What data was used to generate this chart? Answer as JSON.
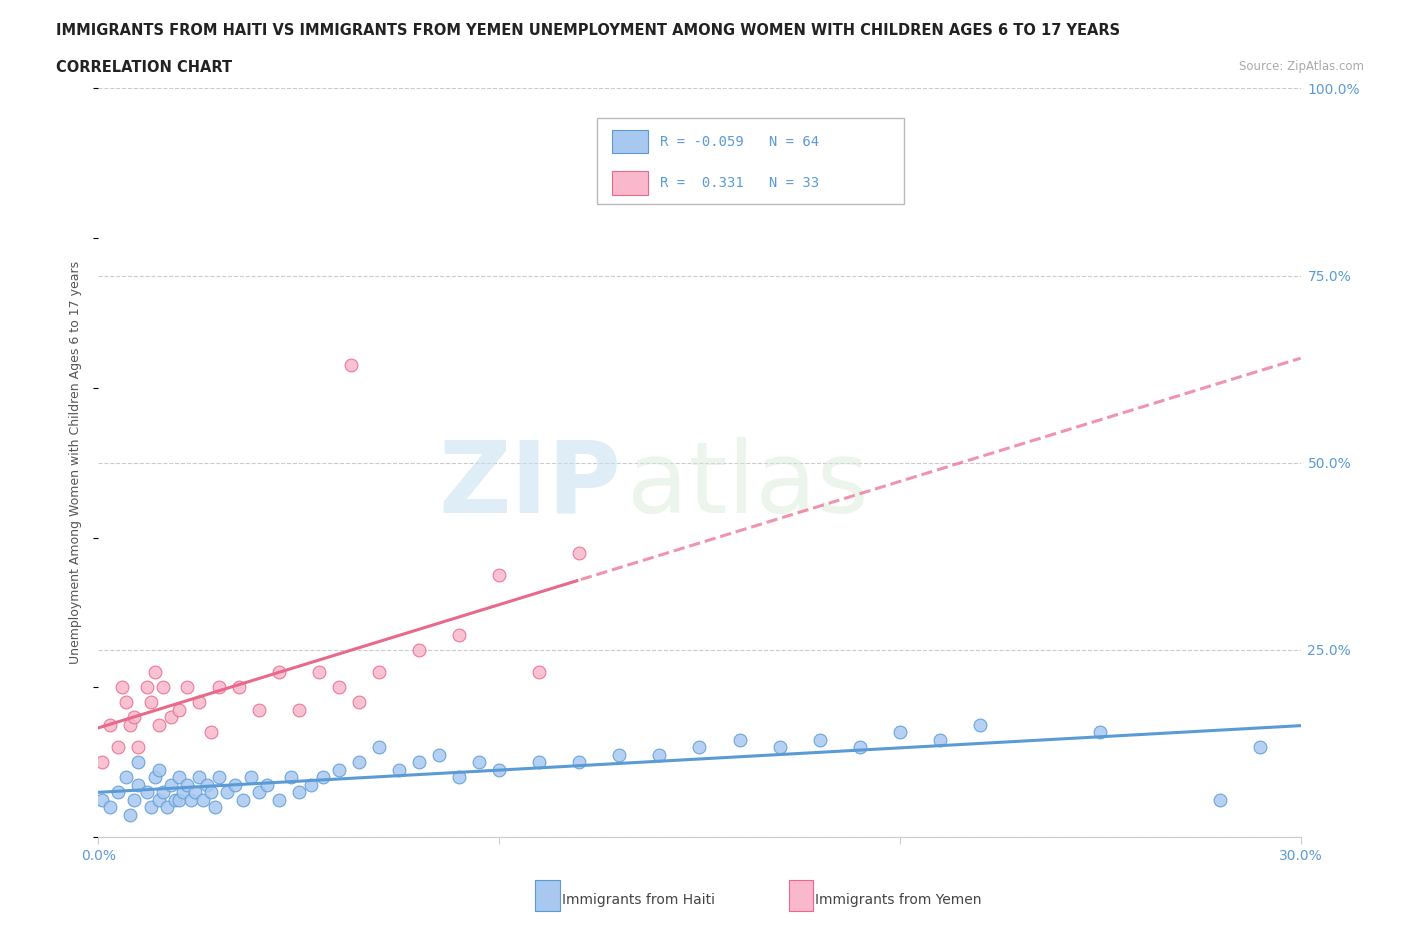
{
  "title_line1": "IMMIGRANTS FROM HAITI VS IMMIGRANTS FROM YEMEN UNEMPLOYMENT AMONG WOMEN WITH CHILDREN AGES 6 TO 17 YEARS",
  "title_line2": "CORRELATION CHART",
  "source_text": "Source: ZipAtlas.com",
  "ylabel": "Unemployment Among Women with Children Ages 6 to 17 years",
  "xlim": [
    0.0,
    0.3
  ],
  "ylim": [
    0.0,
    1.0
  ],
  "haiti_color": "#a8c8f0",
  "haiti_color_dark": "#5b9bd5",
  "yemen_color": "#f9b8cc",
  "yemen_color_dark": "#e8698a",
  "haiti_R": -0.059,
  "haiti_N": 64,
  "yemen_R": 0.331,
  "yemen_N": 33,
  "legend_label_haiti": "Immigrants from Haiti",
  "legend_label_yemen": "Immigrants from Yemen",
  "watermark_zip": "ZIP",
  "watermark_atlas": "atlas",
  "background_color": "#ffffff",
  "grid_color": "#cccccc",
  "haiti_x": [
    0.001,
    0.003,
    0.005,
    0.007,
    0.008,
    0.009,
    0.01,
    0.01,
    0.012,
    0.013,
    0.014,
    0.015,
    0.015,
    0.016,
    0.017,
    0.018,
    0.019,
    0.02,
    0.02,
    0.021,
    0.022,
    0.023,
    0.024,
    0.025,
    0.026,
    0.027,
    0.028,
    0.029,
    0.03,
    0.032,
    0.034,
    0.036,
    0.038,
    0.04,
    0.042,
    0.045,
    0.048,
    0.05,
    0.053,
    0.056,
    0.06,
    0.065,
    0.07,
    0.075,
    0.08,
    0.085,
    0.09,
    0.095,
    0.1,
    0.11,
    0.12,
    0.13,
    0.14,
    0.15,
    0.16,
    0.17,
    0.18,
    0.19,
    0.2,
    0.21,
    0.22,
    0.25,
    0.28,
    0.29
  ],
  "haiti_y": [
    0.05,
    0.04,
    0.06,
    0.08,
    0.03,
    0.05,
    0.07,
    0.1,
    0.06,
    0.04,
    0.08,
    0.05,
    0.09,
    0.06,
    0.04,
    0.07,
    0.05,
    0.08,
    0.05,
    0.06,
    0.07,
    0.05,
    0.06,
    0.08,
    0.05,
    0.07,
    0.06,
    0.04,
    0.08,
    0.06,
    0.07,
    0.05,
    0.08,
    0.06,
    0.07,
    0.05,
    0.08,
    0.06,
    0.07,
    0.08,
    0.09,
    0.1,
    0.12,
    0.09,
    0.1,
    0.11,
    0.08,
    0.1,
    0.09,
    0.1,
    0.1,
    0.11,
    0.11,
    0.12,
    0.13,
    0.12,
    0.13,
    0.12,
    0.14,
    0.13,
    0.15,
    0.14,
    0.05,
    0.12
  ],
  "yemen_x": [
    0.001,
    0.003,
    0.005,
    0.006,
    0.007,
    0.008,
    0.009,
    0.01,
    0.012,
    0.013,
    0.014,
    0.015,
    0.016,
    0.018,
    0.02,
    0.022,
    0.025,
    0.028,
    0.03,
    0.035,
    0.04,
    0.045,
    0.05,
    0.055,
    0.06,
    0.065,
    0.07,
    0.08,
    0.09,
    0.1,
    0.11,
    0.12,
    0.063
  ],
  "yemen_y": [
    0.1,
    0.15,
    0.12,
    0.2,
    0.18,
    0.15,
    0.16,
    0.12,
    0.2,
    0.18,
    0.22,
    0.15,
    0.2,
    0.16,
    0.17,
    0.2,
    0.18,
    0.14,
    0.2,
    0.2,
    0.17,
    0.22,
    0.17,
    0.22,
    0.2,
    0.18,
    0.22,
    0.25,
    0.27,
    0.35,
    0.22,
    0.38,
    0.63
  ]
}
